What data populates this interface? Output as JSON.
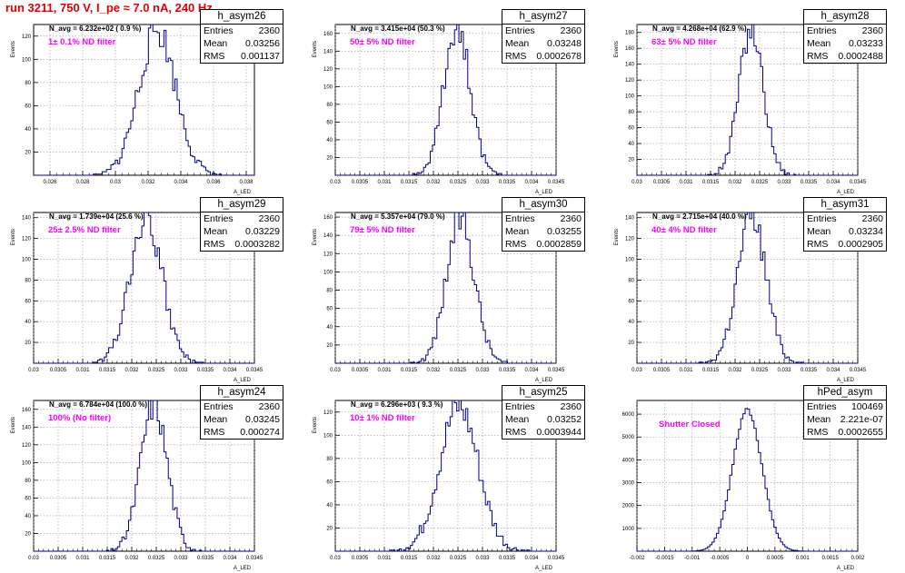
{
  "title": "run 3211,   750 V, I_pe ≈ 7.0 nA, 240 Hz",
  "colors": {
    "title": "#e00000",
    "filter_text": "#ff00ff",
    "histogram": "#00008b",
    "grid": "#999999"
  },
  "chart_data": [
    {
      "type": "bar",
      "name": "h_asym26",
      "xlabel": "A_LED",
      "ylabel": "Events",
      "xlim": [
        0.025,
        0.0385
      ],
      "ylim": [
        0,
        130
      ],
      "xticks": [
        0.026,
        0.028,
        0.03,
        0.032,
        0.034,
        0.036,
        0.038
      ],
      "xtick_labels": [
        "0.026",
        "0.028",
        "0.03",
        "0.032",
        "0.034",
        "0.036",
        "0.038"
      ],
      "yticks": [
        20,
        40,
        60,
        80,
        100,
        120
      ],
      "navg": "N_avg = 6.232e+02 ( 0.9 %)",
      "filter": "1± 0.1% ND filter",
      "stats": {
        "title": "h_asym26",
        "entries_label": "Entries",
        "entries": "2360",
        "mean_label": "Mean",
        "mean": "0.03256",
        "rms_label": "RMS",
        "rms": "0.001137"
      },
      "hist": {
        "mean": 0.03256,
        "sigma": 0.001137,
        "peak": 125,
        "nbins": 100,
        "seed": 26
      }
    },
    {
      "type": "bar",
      "name": "h_asym27",
      "xlabel": "A_LED",
      "ylabel": "Events",
      "xlim": [
        0.03,
        0.0345
      ],
      "ylim": [
        0,
        170
      ],
      "xticks": [
        0.03,
        0.0305,
        0.031,
        0.0315,
        0.032,
        0.0325,
        0.033,
        0.0335,
        0.034,
        0.0345
      ],
      "xtick_labels": [
        "0.03",
        "0.0305",
        "0.031",
        "0.0315",
        "0.032",
        "0.0325",
        "0.033",
        "0.0335",
        "0.034",
        "0.0345"
      ],
      "yticks": [
        20,
        40,
        60,
        80,
        100,
        120,
        140,
        160
      ],
      "navg": "N_avg = 3.415e+04 (50.3 %)",
      "filter": "50± 5% ND filter",
      "stats": {
        "title": "h_asym27",
        "entries_label": "Entries",
        "entries": "2360",
        "mean_label": "Mean",
        "mean": "0.03248",
        "rms_label": "RMS",
        "rms": "0.0002678"
      },
      "hist": {
        "mean": 0.03248,
        "sigma": 0.0002678,
        "peak": 168,
        "nbins": 100,
        "seed": 27
      }
    },
    {
      "type": "bar",
      "name": "h_asym28",
      "xlabel": "A_LED",
      "ylabel": "Events",
      "xlim": [
        0.03,
        0.0345
      ],
      "ylim": [
        0,
        190
      ],
      "xticks": [
        0.03,
        0.0305,
        0.031,
        0.0315,
        0.032,
        0.0325,
        0.033,
        0.0335,
        0.034,
        0.0345
      ],
      "xtick_labels": [
        "0.03",
        "0.0305",
        "0.031",
        "0.0315",
        "0.032",
        "0.0325",
        "0.033",
        "0.0335",
        "0.034",
        "0.0345"
      ],
      "yticks": [
        20,
        40,
        60,
        80,
        100,
        120,
        140,
        160,
        180
      ],
      "navg": "N_avg = 4.268e+04 (62.9 %)",
      "filter": "63± 5% ND filter",
      "stats": {
        "title": "h_asym28",
        "entries_label": "Entries",
        "entries": "2360",
        "mean_label": "Mean",
        "mean": "0.03233",
        "rms_label": "RMS",
        "rms": "0.0002488"
      },
      "hist": {
        "mean": 0.03233,
        "sigma": 0.0002488,
        "peak": 185,
        "nbins": 100,
        "seed": 28
      }
    },
    {
      "type": "bar",
      "name": "h_asym29",
      "xlabel": "A_LED",
      "ylabel": "Events",
      "xlim": [
        0.03,
        0.0345
      ],
      "ylim": [
        0,
        145
      ],
      "xticks": [
        0.03,
        0.0305,
        0.031,
        0.0315,
        0.032,
        0.0325,
        0.033,
        0.0335,
        0.034,
        0.0345
      ],
      "xtick_labels": [
        "0.03",
        "0.0305",
        "0.031",
        "0.0315",
        "0.032",
        "0.0325",
        "0.033",
        "0.0335",
        "0.034",
        "0.0345"
      ],
      "yticks": [
        20,
        40,
        60,
        80,
        100,
        120,
        140
      ],
      "navg": "N_avg = 1.739e+04 (25.6 %)",
      "filter": "25± 2.5% ND filter",
      "stats": {
        "title": "h_asym29",
        "entries_label": "Entries",
        "entries": "2360",
        "mean_label": "Mean",
        "mean": "0.03229",
        "rms_label": "RMS",
        "rms": "0.0003282"
      },
      "hist": {
        "mean": 0.03229,
        "sigma": 0.0003282,
        "peak": 138,
        "nbins": 100,
        "seed": 29
      }
    },
    {
      "type": "bar",
      "name": "h_asym30",
      "xlabel": "A_LED",
      "ylabel": "Events",
      "xlim": [
        0.03,
        0.0345
      ],
      "ylim": [
        0,
        165
      ],
      "xticks": [
        0.03,
        0.0305,
        0.031,
        0.0315,
        0.032,
        0.0325,
        0.033,
        0.0335,
        0.034,
        0.0345
      ],
      "xtick_labels": [
        "0.03",
        "0.0305",
        "0.031",
        "0.0315",
        "0.032",
        "0.0325",
        "0.033",
        "0.0335",
        "0.034",
        "0.0345"
      ],
      "yticks": [
        20,
        40,
        60,
        80,
        100,
        120,
        140,
        160
      ],
      "navg": "N_avg = 5.357e+04 (79.0 %)",
      "filter": "79± 5% ND filter",
      "stats": {
        "title": "h_asym30",
        "entries_label": "Entries",
        "entries": "2360",
        "mean_label": "Mean",
        "mean": "0.03255",
        "rms_label": "RMS",
        "rms": "0.0002859"
      },
      "hist": {
        "mean": 0.03255,
        "sigma": 0.0002859,
        "peak": 158,
        "nbins": 100,
        "seed": 30
      }
    },
    {
      "type": "bar",
      "name": "h_asym31",
      "xlabel": "A_LED",
      "ylabel": "Events",
      "xlim": [
        0.03,
        0.0345
      ],
      "ylim": [
        0,
        145
      ],
      "xticks": [
        0.03,
        0.0305,
        0.031,
        0.0315,
        0.032,
        0.0325,
        0.033,
        0.0335,
        0.034,
        0.0345
      ],
      "xtick_labels": [
        "0.03",
        "0.0305",
        "0.031",
        "0.0315",
        "0.032",
        "0.0325",
        "0.033",
        "0.0335",
        "0.034",
        "0.0345"
      ],
      "yticks": [
        20,
        40,
        60,
        80,
        100,
        120,
        140
      ],
      "navg": "N_avg = 2.715e+04 (40.0 %)",
      "filter": "40± 4% ND filter",
      "stats": {
        "title": "h_asym31",
        "entries_label": "Entries",
        "entries": "2360",
        "mean_label": "Mean",
        "mean": "0.03234",
        "rms_label": "RMS",
        "rms": "0.0002905"
      },
      "hist": {
        "mean": 0.03234,
        "sigma": 0.0002905,
        "peak": 142,
        "nbins": 100,
        "seed": 31
      }
    },
    {
      "type": "bar",
      "name": "h_asym24",
      "xlabel": "A_LED",
      "ylabel": "Events",
      "xlim": [
        0.03,
        0.0345
      ],
      "ylim": [
        0,
        170
      ],
      "xticks": [
        0.03,
        0.0305,
        0.031,
        0.0315,
        0.032,
        0.0325,
        0.033,
        0.0335,
        0.034,
        0.0345
      ],
      "xtick_labels": [
        "0.03",
        "0.0305",
        "0.031",
        "0.0315",
        "0.032",
        "0.0325",
        "0.033",
        "0.0335",
        "0.034",
        "0.0345"
      ],
      "yticks": [
        20,
        40,
        60,
        80,
        100,
        120,
        140,
        160
      ],
      "navg": "N_avg = 6.784e+04 (100.0 %)",
      "filter": "100% (No filter)",
      "stats": {
        "title": "h_asym24",
        "entries_label": "Entries",
        "entries": "2360",
        "mean_label": "Mean",
        "mean": "0.03245",
        "rms_label": "RMS",
        "rms": "0.000274"
      },
      "hist": {
        "mean": 0.03245,
        "sigma": 0.000274,
        "peak": 165,
        "nbins": 100,
        "seed": 24
      }
    },
    {
      "type": "bar",
      "name": "h_asym25",
      "xlabel": "A_LED",
      "ylabel": "Events",
      "xlim": [
        0.03,
        0.0345
      ],
      "ylim": [
        0,
        130
      ],
      "xticks": [
        0.03,
        0.0305,
        0.031,
        0.0315,
        0.032,
        0.0325,
        0.033,
        0.0335,
        0.034,
        0.0345
      ],
      "xtick_labels": [
        "0.03",
        "0.0305",
        "0.031",
        "0.0315",
        "0.032",
        "0.0325",
        "0.033",
        "0.0335",
        "0.034",
        "0.0345"
      ],
      "yticks": [
        20,
        40,
        60,
        80,
        100,
        120
      ],
      "navg": "N_avg = 6.296e+03 ( 9.3 %)",
      "filter": "10± 1% ND filter",
      "stats": {
        "title": "h_asym25",
        "entries_label": "Entries",
        "entries": "2360",
        "mean_label": "Mean",
        "mean": "0.03252",
        "rms_label": "RMS",
        "rms": "0.0003944"
      },
      "hist": {
        "mean": 0.03252,
        "sigma": 0.0003944,
        "peak": 125,
        "nbins": 100,
        "seed": 25
      }
    },
    {
      "type": "bar",
      "name": "hPed_asym",
      "xlabel": "A_LED",
      "ylabel": "",
      "xlim": [
        -0.002,
        0.002
      ],
      "ylim": [
        0,
        6600
      ],
      "xticks": [
        -0.002,
        -0.0015,
        -0.001,
        -0.0005,
        0,
        0.0005,
        0.001,
        0.0015,
        0.002
      ],
      "xtick_labels": [
        "-0.002",
        "-0.0015",
        "-0.001",
        "-0.0005",
        "0",
        "0.0005",
        "0.001",
        "0.0015",
        "0.002"
      ],
      "yticks": [
        1000,
        2000,
        3000,
        4000,
        5000,
        6000
      ],
      "navg": "",
      "filter": "Shutter Closed",
      "stats": {
        "title": "hPed_asym",
        "entries_label": "Entries",
        "entries": "100469",
        "mean_label": "Mean",
        "mean": "2.221e-07",
        "rms_label": "RMS",
        "rms": "0.0002655"
      },
      "hist": {
        "mean": 0.0,
        "sigma": 0.0002655,
        "peak": 6200,
        "nbins": 100,
        "seed": 0,
        "smooth": true
      }
    }
  ]
}
